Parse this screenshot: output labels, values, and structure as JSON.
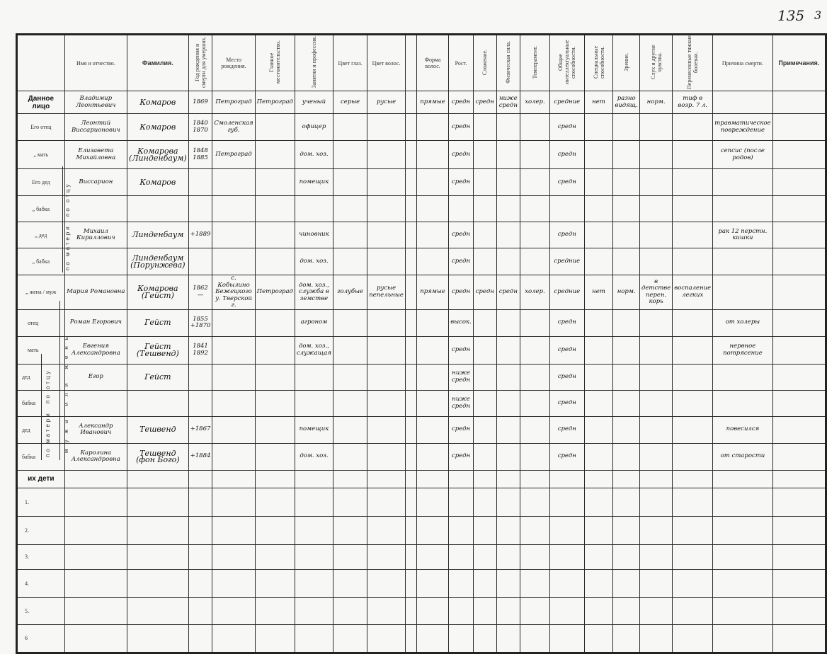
{
  "page_number": {
    "main": "135",
    "sub": "3"
  },
  "headers": [
    {
      "label": "",
      "vertical": false
    },
    {
      "label": "Имя и отчество.",
      "vertical": false
    },
    {
      "label": "Фамилия.",
      "vertical": false,
      "bold": true
    },
    {
      "label": "Год рождения и смерти для умерших.",
      "vertical": true
    },
    {
      "label": "Место рождения.",
      "vertical": false
    },
    {
      "label": "Главное местожительство.",
      "vertical": true
    },
    {
      "label": "Занятия и профессия.",
      "vertical": true
    },
    {
      "label": "Цвет глаз.",
      "vertical": false
    },
    {
      "label": "Цвет волос.",
      "vertical": false
    },
    {
      "label": "",
      "vertical": false
    },
    {
      "label": "Форма волос.",
      "vertical": false
    },
    {
      "label": "Рост.",
      "vertical": false
    },
    {
      "label": "Сложение.",
      "vertical": true
    },
    {
      "label": "Физическая сила.",
      "vertical": true
    },
    {
      "label": "Темперамент.",
      "vertical": true
    },
    {
      "label": "Общие интеллектуальные способности.",
      "vertical": true
    },
    {
      "label": "Специальные способности.",
      "vertical": true
    },
    {
      "label": "Зрение.",
      "vertical": true
    },
    {
      "label": "Слух и другие чувства.",
      "vertical": true
    },
    {
      "label": "Перенесенные тяжкие болезни.",
      "vertical": true
    },
    {
      "label": "Причина смерти.",
      "vertical": false
    },
    {
      "label": "Примечания.",
      "vertical": false,
      "bold": true
    }
  ],
  "side_labels": {
    "paternal_upper": "по отцу",
    "maternal_upper": "по матери",
    "spouse": "мужа или жены",
    "paternal_lower": "по отцу",
    "maternal_lower": "по матери"
  },
  "rows": [
    {
      "label": "Данное лицо",
      "main": true,
      "cells": [
        "Владимир Леонтьевич",
        "Комаров",
        "1869",
        "Петроград",
        "Петроград",
        "ученый",
        "серые",
        "русые",
        "",
        "прямые",
        "средн",
        "средн",
        "ниже средн",
        "холер.",
        "средние",
        "нет",
        "разно видящ.",
        "норм.",
        "тиф в возр. 7 л.",
        "",
        ""
      ]
    },
    {
      "label": "Его отец",
      "cells": [
        "Леонтий Виссарионович",
        "Комаров",
        "1840 1870",
        "Смоленская губ.",
        "",
        "офицер",
        "",
        "",
        "",
        "",
        "средн",
        "",
        "",
        "",
        "средн",
        "",
        "",
        "",
        "",
        "травматическое повреждение",
        ""
      ]
    },
    {
      "label": "„ мать",
      "cells": [
        "Елизавета Михайловна",
        "Комарова (Линденбаум)",
        "1848 1885",
        "Петроград",
        "",
        "дом. хоз.",
        "",
        "",
        "",
        "",
        "средн",
        "",
        "",
        "",
        "средн",
        "",
        "",
        "",
        "",
        "сепсис (после родов)",
        ""
      ]
    },
    {
      "label": "Его дед",
      "cells": [
        "Виссарион",
        "Комаров",
        "",
        "",
        "",
        "помещик",
        "",
        "",
        "",
        "",
        "средн",
        "",
        "",
        "",
        "средн",
        "",
        "",
        "",
        "",
        "",
        ""
      ]
    },
    {
      "label": "„ бабка",
      "cells": [
        "",
        "",
        "",
        "",
        "",
        "",
        "",
        "",
        "",
        "",
        "",
        "",
        "",
        "",
        "",
        "",
        "",
        "",
        "",
        "",
        ""
      ]
    },
    {
      "label": "„ дед",
      "cells": [
        "Михаил Кириллович",
        "Линденбаум",
        "+1889",
        "",
        "",
        "чиновник",
        "",
        "",
        "",
        "",
        "средн",
        "",
        "",
        "",
        "средн",
        "",
        "",
        "",
        "",
        "рак 12 перстн. кишки",
        ""
      ]
    },
    {
      "label": "„ бабка",
      "cells": [
        "",
        "Линденбаум (Порунжева)",
        "",
        "",
        "",
        "дом. хоз.",
        "",
        "",
        "",
        "",
        "средн",
        "",
        "",
        "",
        "средние",
        "",
        "",
        "",
        "",
        "",
        ""
      ]
    },
    {
      "label": "„ жена / муж",
      "cells": [
        "Мария Романовна",
        "Комарова (Гейст)",
        "1862 —",
        "с. Кобылино Бежецкого у. Тверской г.",
        "Петроград",
        "дом. хоз., служба в земстве",
        "голубые",
        "русые пепельные",
        "",
        "прямые",
        "средн",
        "средн",
        "средн",
        "холер.",
        "средние",
        "нет",
        "норм.",
        "в детстве перен. корь",
        "воспаление легких",
        "",
        ""
      ]
    },
    {
      "label": "отец",
      "cells": [
        "Роман Егорович",
        "Гейст",
        "1855 +1870",
        "",
        "",
        "агроном",
        "",
        "",
        "",
        "",
        "высок.",
        "",
        "",
        "",
        "средн",
        "",
        "",
        "",
        "",
        "от холеры",
        ""
      ]
    },
    {
      "label": "мать",
      "cells": [
        "Евгения Александровна",
        "Гейст (Тешвенд)",
        "1841 1892",
        "",
        "",
        "дом. хоз., служащая",
        "",
        "",
        "",
        "",
        "средн",
        "",
        "",
        "",
        "средн",
        "",
        "",
        "",
        "",
        "нервное потрясение",
        ""
      ]
    },
    {
      "label": "дед",
      "cells": [
        "Егор",
        "Гейст",
        "",
        "",
        "",
        "",
        "",
        "",
        "",
        "",
        "ниже средн",
        "",
        "",
        "",
        "средн",
        "",
        "",
        "",
        "",
        "",
        ""
      ]
    },
    {
      "label": "бабка",
      "cells": [
        "",
        "",
        "",
        "",
        "",
        "",
        "",
        "",
        "",
        "",
        "ниже средн",
        "",
        "",
        "",
        "средн",
        "",
        "",
        "",
        "",
        "",
        ""
      ]
    },
    {
      "label": "дед",
      "cells": [
        "Александр Иванович",
        "Тешвенд",
        "+1867",
        "",
        "",
        "помещик",
        "",
        "",
        "",
        "",
        "средн",
        "",
        "",
        "",
        "средн",
        "",
        "",
        "",
        "",
        "повесился",
        ""
      ]
    },
    {
      "label": "бабка",
      "cells": [
        "Каролина Александровна",
        "Тешвенд (фон Бого)",
        "+1884",
        "",
        "",
        "дом. хоз.",
        "",
        "",
        "",
        "",
        "средн",
        "",
        "",
        "",
        "средн",
        "",
        "",
        "",
        "",
        "от старости",
        ""
      ]
    },
    {
      "label": "их дети",
      "main": true,
      "cells": [
        "",
        "",
        "",
        "",
        "",
        "",
        "",
        "",
        "",
        "",
        "",
        "",
        "",
        "",
        "",
        "",
        "",
        "",
        "",
        "",
        ""
      ]
    },
    {
      "label": "1.",
      "cells": [
        "",
        "",
        "",
        "",
        "",
        "",
        "",
        "",
        "",
        "",
        "",
        "",
        "",
        "",
        "",
        "",
        "",
        "",
        "",
        "",
        ""
      ]
    },
    {
      "label": "2.",
      "cells": [
        "",
        "",
        "",
        "",
        "",
        "",
        "",
        "",
        "",
        "",
        "",
        "",
        "",
        "",
        "",
        "",
        "",
        "",
        "",
        "",
        ""
      ]
    },
    {
      "label": "3.",
      "cells": [
        "",
        "",
        "",
        "",
        "",
        "",
        "",
        "",
        "",
        "",
        "",
        "",
        "",
        "",
        "",
        "",
        "",
        "",
        "",
        "",
        ""
      ]
    },
    {
      "label": "4.",
      "cells": [
        "",
        "",
        "",
        "",
        "",
        "",
        "",
        "",
        "",
        "",
        "",
        "",
        "",
        "",
        "",
        "",
        "",
        "",
        "",
        "",
        ""
      ]
    },
    {
      "label": "5.",
      "cells": [
        "",
        "",
        "",
        "",
        "",
        "",
        "",
        "",
        "",
        "",
        "",
        "",
        "",
        "",
        "",
        "",
        "",
        "",
        "",
        "",
        ""
      ]
    },
    {
      "label": "6",
      "cells": [
        "",
        "",
        "",
        "",
        "",
        "",
        "",
        "",
        "",
        "",
        "",
        "",
        "",
        "",
        "",
        "",
        "",
        "",
        "",
        "",
        ""
      ]
    }
  ]
}
